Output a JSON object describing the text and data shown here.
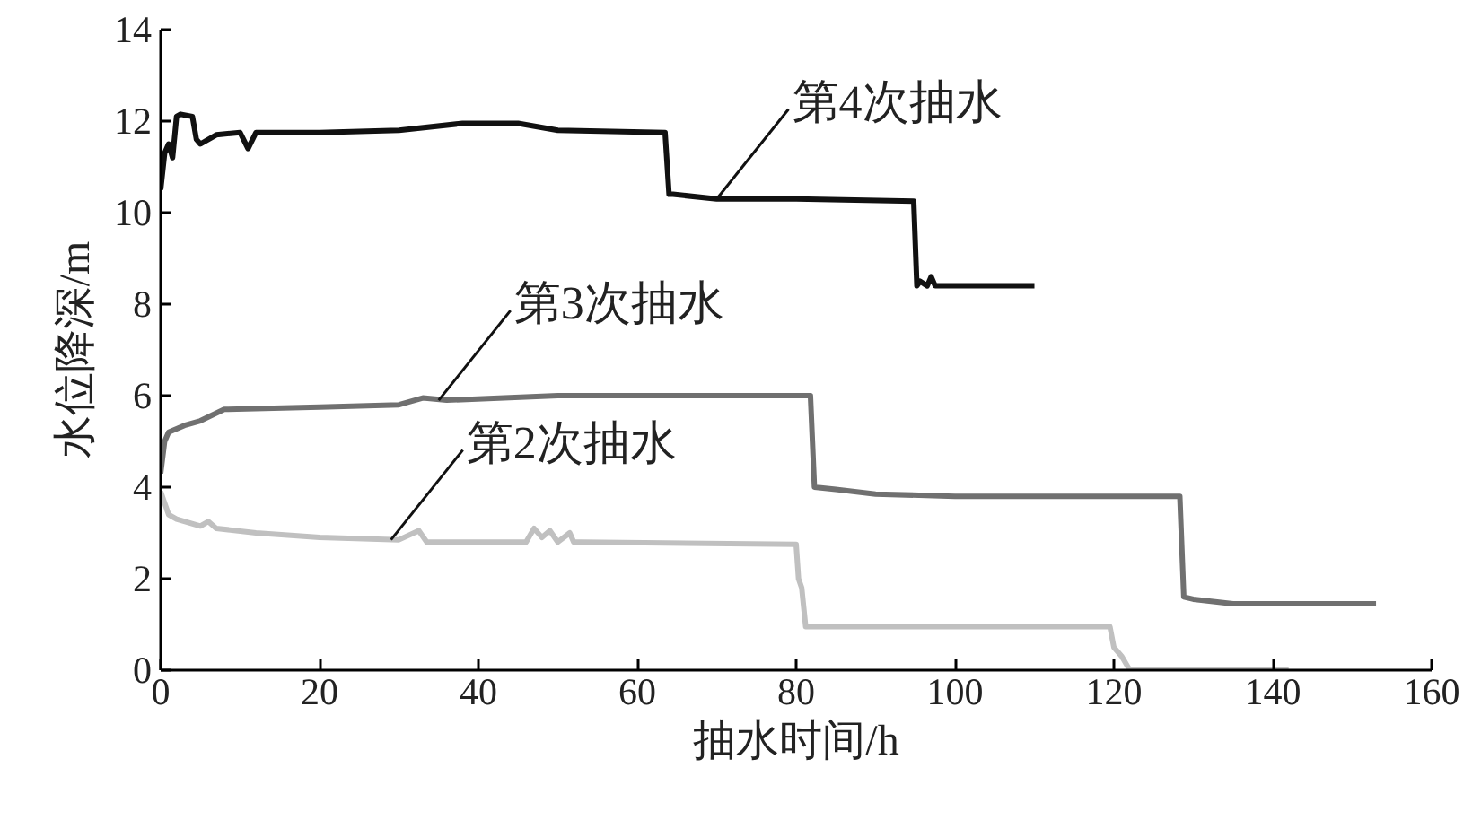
{
  "chart_data": {
    "type": "line",
    "xlabel": "抽水时间/h",
    "ylabel": "水位降深/m",
    "xlim": [
      0,
      160
    ],
    "xticks": [
      0,
      20,
      40,
      60,
      80,
      100,
      120,
      140,
      160
    ],
    "ylim": [
      0,
      14
    ],
    "yticks": [
      0,
      2,
      4,
      6,
      8,
      10,
      12,
      14
    ],
    "grid": false,
    "marker": "none",
    "line_style": "solid",
    "annotations": [
      {
        "text": "第4次抽水",
        "x": 70,
        "y": 10.3
      },
      {
        "text": "第3次抽水",
        "x": 35,
        "y": 5.9
      },
      {
        "text": "第2次抽水",
        "x": 29,
        "y": 2.85
      }
    ],
    "series": [
      {
        "color": "#111111",
        "x": [
          0,
          0.5,
          1,
          1.5,
          2,
          2.5,
          4,
          4.5,
          5,
          7,
          10,
          11,
          12,
          20,
          30,
          38,
          45,
          50,
          63.5,
          64,
          64.5,
          70,
          80,
          94.8,
          95.2,
          95.6,
          96.5,
          97,
          97.5,
          100,
          110
        ],
        "values": [
          10.5,
          11.3,
          11.5,
          11.2,
          12.1,
          12.15,
          12.1,
          11.6,
          11.5,
          11.7,
          11.75,
          11.4,
          11.75,
          11.75,
          11.8,
          11.95,
          11.95,
          11.8,
          11.75,
          10.4,
          10.4,
          10.3,
          10.3,
          10.25,
          8.4,
          8.5,
          8.4,
          8.6,
          8.4,
          8.4,
          8.4
        ]
      },
      {
        "color": "#707070",
        "x": [
          0,
          0.5,
          1,
          3,
          5,
          8,
          20,
          30,
          33,
          36,
          50,
          81.8,
          82.3,
          85,
          90,
          100,
          128.3,
          128.8,
          130,
          135,
          153
        ],
        "values": [
          4.3,
          5.0,
          5.2,
          5.35,
          5.45,
          5.7,
          5.75,
          5.8,
          5.95,
          5.9,
          6.0,
          6.0,
          4.0,
          3.95,
          3.85,
          3.8,
          3.8,
          1.6,
          1.55,
          1.45,
          1.45
        ]
      },
      {
        "color": "#c0c0c0",
        "x": [
          0,
          1,
          2,
          5,
          6,
          7,
          12,
          20,
          30,
          32.5,
          33.5,
          35,
          46,
          47,
          48,
          49,
          50,
          51.5,
          52,
          53,
          80,
          80.3,
          80.7,
          81.2,
          100,
          119.5,
          120,
          121,
          122,
          142
        ],
        "values": [
          3.9,
          3.4,
          3.3,
          3.15,
          3.25,
          3.1,
          3.0,
          2.9,
          2.85,
          3.05,
          2.8,
          2.8,
          2.8,
          3.1,
          2.9,
          3.05,
          2.8,
          3.0,
          2.8,
          2.8,
          2.75,
          2.0,
          1.8,
          0.95,
          0.95,
          0.95,
          0.5,
          0.3,
          0,
          0
        ]
      }
    ]
  }
}
